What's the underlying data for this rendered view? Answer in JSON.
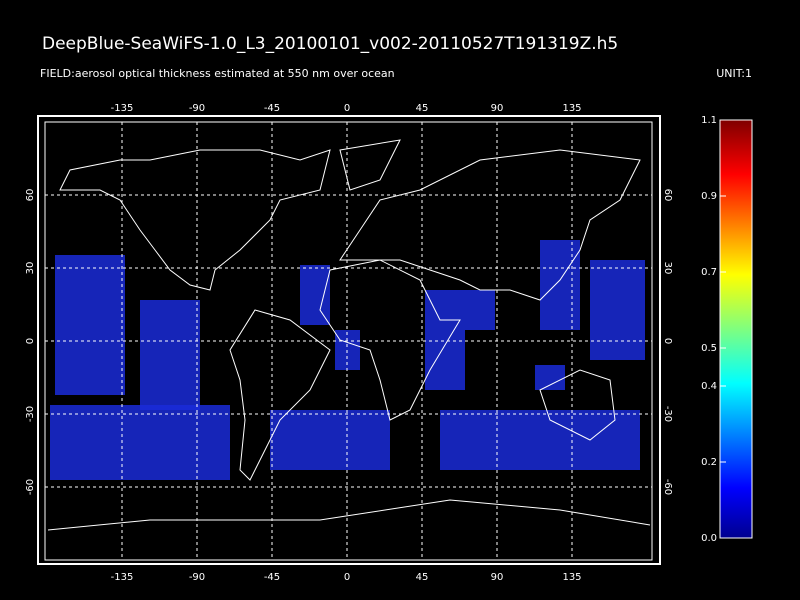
{
  "header": {
    "title": "DeepBlue-SeaWiFS-1.0_L3_20100101_v002-20110527T191319Z.h5",
    "field": "FIELD:aerosol optical thickness estimated at 550 nm over ocean",
    "unit": "UNIT:1"
  },
  "map": {
    "xlim": [
      -180,
      180
    ],
    "ylim": [
      -90,
      90
    ],
    "xticks": [
      -135,
      -90,
      -45,
      0,
      45,
      90,
      135
    ],
    "yticks": [
      -60,
      -30,
      0,
      30,
      60
    ]
  },
  "colorbar": {
    "range": [
      0,
      1.1
    ],
    "ticks": [
      {
        "value": 0,
        "label": "0.0"
      },
      {
        "value": 0.2,
        "label": "0.2"
      },
      {
        "value": 0.4,
        "label": "0.4"
      },
      {
        "value": 0.5,
        "label": "0.5"
      },
      {
        "value": 0.7,
        "label": "0.7"
      },
      {
        "value": 0.9,
        "label": "0.9"
      },
      {
        "value": 1.1,
        "label": "1.1"
      }
    ]
  }
}
